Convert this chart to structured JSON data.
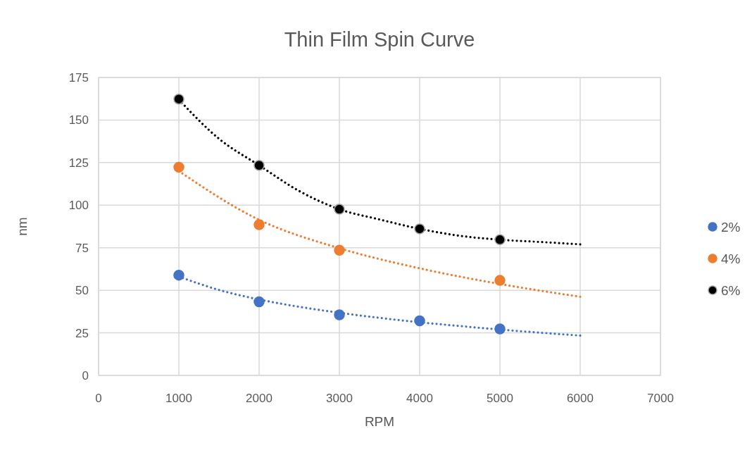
{
  "chart_data": {
    "type": "scatter",
    "title": "Thin Film Spin Curve",
    "xlabel": "RPM",
    "ylabel": "nm",
    "xlim": [
      0,
      7000
    ],
    "xticks": [
      0,
      1000,
      2000,
      3000,
      4000,
      5000,
      6000,
      7000
    ],
    "ylim": [
      0,
      175
    ],
    "yticks": [
      0,
      25,
      50,
      75,
      100,
      125,
      150,
      175
    ],
    "grid": true,
    "legend": "right",
    "marker": "circle",
    "x": [
      1000,
      2000,
      3000,
      4000,
      5000
    ],
    "series": [
      {
        "name": "2%",
        "color": "#4472c4",
        "values": [
          58.9,
          43.2,
          35.6,
          32.1,
          27.3
        ]
      },
      {
        "name": "4%",
        "color": "#ed7d31",
        "values": [
          122.3,
          88.5,
          73.5,
          null,
          55.8
        ]
      },
      {
        "name": "6%",
        "color": "#000000",
        "values": [
          162.3,
          123.4,
          97.6,
          86.1,
          79.7
        ]
      },
      {
        "type": "line",
        "marker": "none",
        "line_style": "dotted",
        "color": "#4472c4",
        "x": [
          1000,
          1500,
          2000,
          2500,
          3000,
          3500,
          4000,
          4500,
          5000,
          5500,
          6000
        ],
        "values": [
          58,
          50.2,
          44.6,
          40.3,
          36.8,
          33.8,
          31.2,
          29.0,
          26.9,
          25.1,
          23.4
        ]
      },
      {
        "type": "line",
        "marker": "none",
        "line_style": "dotted",
        "color": "#ed7d31",
        "x": [
          1000,
          2000,
          3000,
          4000,
          5000,
          6000
        ],
        "values": [
          120,
          91.4,
          74.7,
          62.9,
          53.7,
          46.2
        ]
      },
      {
        "type": "line",
        "marker": "none",
        "line_style": "dotted",
        "color": "#000000",
        "x": [
          1000,
          1500,
          2000,
          2500,
          3000,
          3500,
          4000,
          4500,
          5000,
          5500,
          6000
        ],
        "values": [
          162,
          139,
          123.4,
          108.3,
          97.6,
          91.6,
          86.1,
          82,
          79.7,
          78.4,
          77
        ]
      }
    ]
  }
}
